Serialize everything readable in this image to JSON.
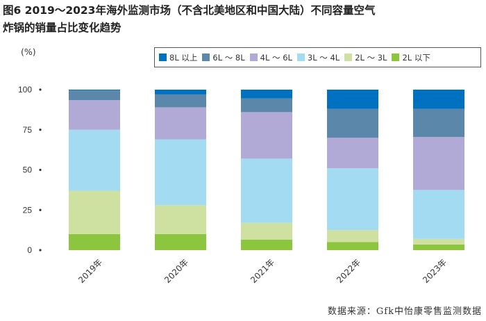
{
  "title": {
    "line1": "图6  2019～2023年海外监测市场（不含北美地区和中国大陆）不同容量空气",
    "line2": "炸锅的销量占比变化趋势"
  },
  "source": "数据来源：Gfk中怡康零售监测数据",
  "colors": {
    "s8plus": "#0070c0",
    "s6to8": "#5b87aa",
    "s4to6": "#b1a9d6",
    "s3to4": "#a3dcf2",
    "s2to3": "#cfe1a0",
    "s2less": "#8cc63f"
  },
  "chart_data": {
    "type": "bar",
    "stacked": true,
    "title": "2019～2023年海外监测市场（不含北美地区和中国大陆）不同容量空气炸锅的销量占比变化趋势",
    "ylabel": "(%)",
    "xlabel": "",
    "ylim": [
      0,
      100
    ],
    "yticks": [
      "100",
      "75",
      "50",
      "25",
      "0"
    ],
    "categories": [
      "2019年",
      "2020年",
      "2021年",
      "2022年",
      "2023年"
    ],
    "series": [
      {
        "key": "s2less",
        "name": "2L 以下",
        "values": [
          10,
          10,
          6.5,
          5,
          3.5
        ]
      },
      {
        "key": "s2to3",
        "name": "2L ～ 3L",
        "values": [
          27,
          18,
          10.5,
          7.5,
          3.5
        ]
      },
      {
        "key": "s3to4",
        "name": "3L ～ 4L",
        "values": [
          38,
          41,
          40,
          38.5,
          30.5
        ]
      },
      {
        "key": "s4to6",
        "name": "4L ～ 6L",
        "values": [
          18.5,
          20,
          29,
          19,
          33
        ]
      },
      {
        "key": "s6to8",
        "name": "6L ～ 8L",
        "values": [
          6,
          8,
          8.5,
          18,
          17.5
        ]
      },
      {
        "key": "s8plus",
        "name": "8L 以上",
        "values": [
          0.5,
          3,
          5.5,
          12,
          12
        ]
      }
    ],
    "legend_order": [
      "s8plus",
      "s6to8",
      "s4to6",
      "s3to4",
      "s2to3",
      "s2less"
    ],
    "legend_position": "top-right"
  }
}
